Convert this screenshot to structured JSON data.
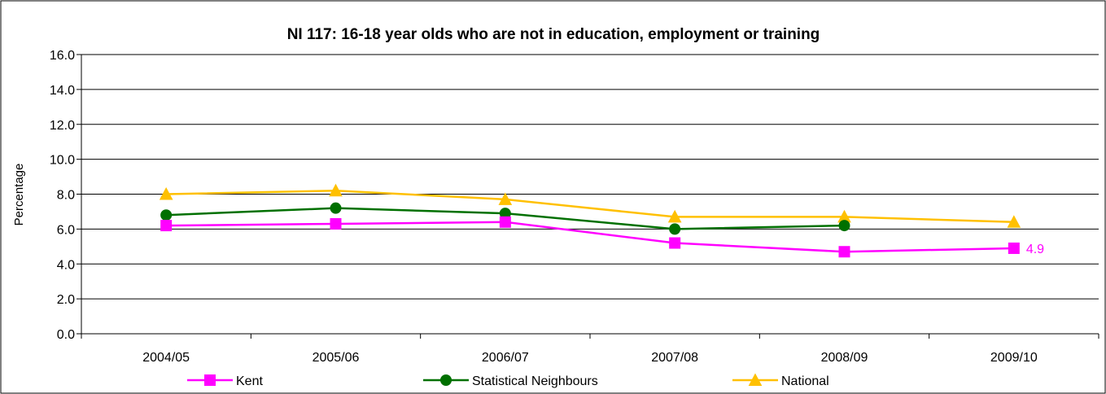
{
  "chart_data": {
    "type": "line",
    "title": "NI 117: 16-18 year olds who are not in education, employment or training",
    "ylabel": "Percentage",
    "xlabel": "",
    "categories": [
      "2004/05",
      "2005/06",
      "2006/07",
      "2007/08",
      "2008/09",
      "2009/10"
    ],
    "ylim": [
      0,
      16
    ],
    "ytick_step": 2,
    "ytick_labels": [
      "0.0",
      "2.0",
      "4.0",
      "6.0",
      "8.0",
      "10.0",
      "12.0",
      "14.0",
      "16.0"
    ],
    "grid": true,
    "legend_position": "bottom",
    "series": [
      {
        "name": "Kent",
        "marker": "square",
        "color": "#ff00ff",
        "values": [
          6.2,
          6.3,
          6.4,
          5.2,
          4.7,
          4.9
        ],
        "end_label": "4.9"
      },
      {
        "name": "Statistical Neighbours",
        "marker": "circle",
        "color": "#007000",
        "values": [
          6.8,
          7.2,
          6.9,
          6.0,
          6.2,
          null
        ]
      },
      {
        "name": "National",
        "marker": "triangle",
        "color": "#ffc000",
        "values": [
          8.0,
          8.2,
          7.7,
          6.7,
          6.7,
          6.4
        ]
      }
    ]
  }
}
